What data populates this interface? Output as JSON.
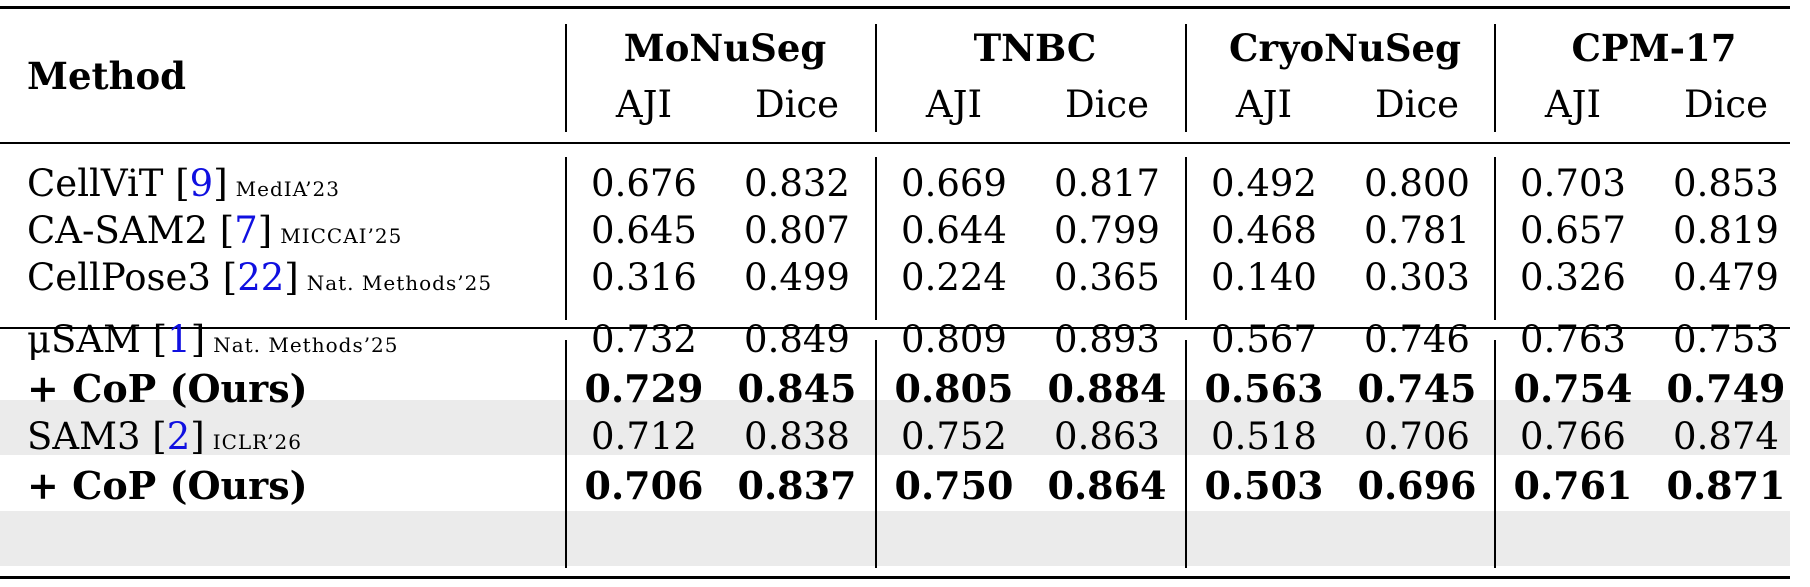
{
  "header": {
    "method_label": "Method",
    "datasets": [
      "MoNuSeg",
      "TNBC",
      "CryoNuSeg",
      "CPM-17"
    ],
    "metrics": [
      "AJI",
      "Dice"
    ]
  },
  "rows": [
    {
      "method": "CellViT",
      "ref": "9",
      "venue": "MedIA’23",
      "values": [
        "0.676",
        "0.832",
        "0.669",
        "0.817",
        "0.492",
        "0.800",
        "0.703",
        "0.853"
      ]
    },
    {
      "method": "CA-SAM2",
      "ref": "7",
      "venue": "MICCAI’25",
      "values": [
        "0.645",
        "0.807",
        "0.644",
        "0.799",
        "0.468",
        "0.781",
        "0.657",
        "0.819"
      ]
    },
    {
      "method": "CellPose3",
      "ref": "22",
      "venue": "Nat. Methods’25",
      "values": [
        "0.316",
        "0.499",
        "0.224",
        "0.365",
        "0.140",
        "0.303",
        "0.326",
        "0.479"
      ]
    },
    {
      "method": "μSAM",
      "ref": "1",
      "venue": "Nat. Methods’25",
      "values": [
        "0.732",
        "0.849",
        "0.809",
        "0.893",
        "0.567",
        "0.746",
        "0.763",
        "0.753"
      ]
    },
    {
      "method": "+ CoP (Ours)",
      "ref": "",
      "venue": "",
      "values": [
        "0.729",
        "0.845",
        "0.805",
        "0.884",
        "0.563",
        "0.745",
        "0.754",
        "0.749"
      ]
    },
    {
      "method": "SAM3",
      "ref": "2",
      "venue": "ICLR’26",
      "values": [
        "0.712",
        "0.838",
        "0.752",
        "0.863",
        "0.518",
        "0.706",
        "0.766",
        "0.874"
      ]
    },
    {
      "method": "+ CoP (Ours)",
      "ref": "",
      "venue": "",
      "values": [
        "0.706",
        "0.837",
        "0.750",
        "0.864",
        "0.503",
        "0.696",
        "0.761",
        "0.871"
      ]
    }
  ]
}
